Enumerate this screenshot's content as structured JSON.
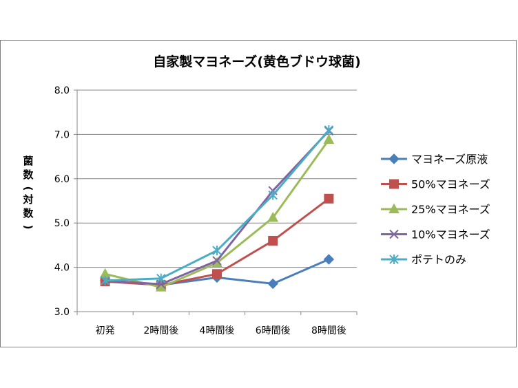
{
  "chart_data": {
    "type": "line",
    "title": "自家製マヨネーズ(黄色ブドウ球菌)",
    "ylabel": "菌数(対数)",
    "xlabel": "",
    "categories": [
      "初発",
      "2時間後",
      "4時間後",
      "6時間後",
      "8時間後"
    ],
    "ylim": [
      3.0,
      8.0
    ],
    "yticks": [
      "3.0",
      "4.0",
      "5.0",
      "6.0",
      "7.0",
      "8.0"
    ],
    "grid": true,
    "legend_position": "right",
    "series": [
      {
        "name": "マヨネーズ原液",
        "values": [
          3.7,
          3.6,
          3.77,
          3.63,
          4.18
        ],
        "color": "#4a7ebb",
        "marker": "diamond"
      },
      {
        "name": "50%マヨネーズ",
        "values": [
          3.68,
          3.6,
          3.85,
          4.6,
          5.55
        ],
        "color": "#c0504d",
        "marker": "square"
      },
      {
        "name": "25%マヨネーズ",
        "values": [
          3.85,
          3.55,
          4.1,
          5.12,
          6.88
        ],
        "color": "#9bbb59",
        "marker": "triangle"
      },
      {
        "name": "10%マヨネーズ",
        "values": [
          3.7,
          3.62,
          4.15,
          5.73,
          7.08
        ],
        "color": "#8064a2",
        "marker": "x"
      },
      {
        "name": "ポテトのみ",
        "values": [
          3.7,
          3.75,
          4.38,
          5.63,
          7.1
        ],
        "color": "#4bacc6",
        "marker": "star"
      }
    ]
  }
}
